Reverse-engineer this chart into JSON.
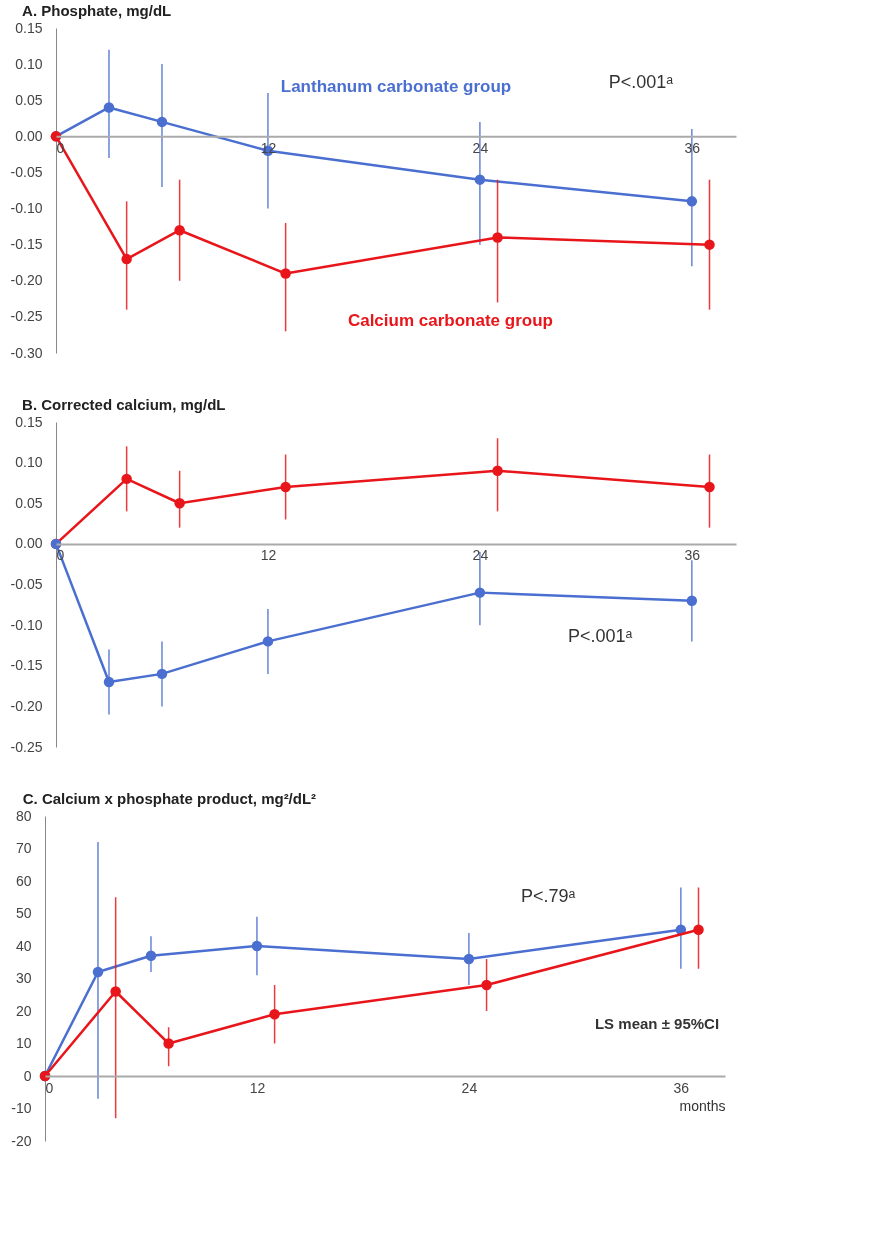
{
  "chart_data": [
    {
      "type": "line",
      "title": "A. Phosphate, mg/dL",
      "xlim": [
        0,
        38.5
      ],
      "xticks": [
        0,
        12,
        24,
        36
      ],
      "ylim": [
        -0.3,
        0.15
      ],
      "yticks": [
        {
          "value": -0.3,
          "label": "-0.30"
        },
        {
          "value": -0.25,
          "label": "-0.25"
        },
        {
          "value": -0.2,
          "label": "-0.20"
        },
        {
          "value": -0.15,
          "label": "-0.15"
        },
        {
          "value": -0.1,
          "label": "-0.10"
        },
        {
          "value": -0.05,
          "label": "-0.05"
        },
        {
          "value": 0,
          "label": "0.00"
        },
        {
          "value": 0.05,
          "label": "0.05"
        },
        {
          "value": 0.1,
          "label": "0.10"
        },
        {
          "value": 0.15,
          "label": "0.15"
        }
      ],
      "marker": "circle",
      "line_style": "solid",
      "grid": false,
      "series": [
        {
          "name": "Lanthanum carbonate group",
          "color": "#4a6fd0",
          "x": [
            0,
            3,
            6,
            12,
            24,
            36
          ],
          "values": [
            0,
            0.04,
            0.02,
            -0.02,
            -0.06,
            -0.09
          ],
          "errors": [
            null,
            [
              -0.03,
              0.12
            ],
            [
              -0.07,
              0.1
            ],
            [
              -0.1,
              0.06
            ],
            [
              -0.15,
              0.02
            ],
            [
              -0.18,
              0.01
            ]
          ]
        },
        {
          "name": "Calcium carbonate group",
          "color": "#e8161b",
          "x": [
            0,
            4,
            7,
            13,
            25,
            37
          ],
          "values": [
            0,
            -0.17,
            -0.13,
            -0.19,
            -0.14,
            -0.15
          ],
          "errors": [
            null,
            [
              -0.24,
              -0.09
            ],
            [
              -0.2,
              -0.06
            ],
            [
              -0.27,
              -0.12
            ],
            [
              -0.23,
              -0.06
            ],
            [
              -0.24,
              -0.06
            ]
          ]
        }
      ],
      "annotations": [
        "P<.001ᵃ"
      ]
    },
    {
      "type": "line",
      "title": "B. Corrected calcium, mg/dL",
      "xlim": [
        0,
        38.5
      ],
      "xticks": [
        0,
        12,
        24,
        36
      ],
      "ylim": [
        -0.25,
        0.15
      ],
      "yticks": [
        {
          "value": -0.25,
          "label": "-0.25"
        },
        {
          "value": -0.2,
          "label": "-0.20"
        },
        {
          "value": -0.15,
          "label": "-0.15"
        },
        {
          "value": -0.1,
          "label": "-0.10"
        },
        {
          "value": -0.05,
          "label": "-0.05"
        },
        {
          "value": 0,
          "label": "0.00"
        },
        {
          "value": 0.05,
          "label": "0.05"
        },
        {
          "value": 0.1,
          "label": "0.10"
        },
        {
          "value": 0.15,
          "label": "0.15"
        }
      ],
      "marker": "circle",
      "line_style": "solid",
      "grid": false,
      "series": [
        {
          "color": "#e8161b",
          "x": [
            0,
            4,
            7,
            13,
            25,
            37
          ],
          "values": [
            0,
            0.08,
            0.05,
            0.07,
            0.09,
            0.07
          ],
          "errors": [
            null,
            [
              0.04,
              0.12
            ],
            [
              0.02,
              0.09
            ],
            [
              0.03,
              0.11
            ],
            [
              0.04,
              0.13
            ],
            [
              0.02,
              0.11
            ]
          ]
        },
        {
          "color": "#4a6fd0",
          "x": [
            0,
            3,
            6,
            12,
            24,
            36
          ],
          "values": [
            0,
            -0.17,
            -0.16,
            -0.12,
            -0.06,
            -0.07
          ],
          "errors": [
            null,
            [
              -0.21,
              -0.13
            ],
            [
              -0.2,
              -0.12
            ],
            [
              -0.16,
              -0.08
            ],
            [
              -0.1,
              -0.01
            ],
            [
              -0.12,
              -0.02
            ]
          ]
        }
      ],
      "annotations": [
        "P<.001ᵃ"
      ]
    },
    {
      "type": "line",
      "title": "C. Calcium x phosphate product, mg²/dL²",
      "xlabel": "months",
      "xlim": [
        0,
        38.5
      ],
      "xticks": [
        0,
        12,
        24,
        36
      ],
      "ylim": [
        -20,
        80
      ],
      "yticks": [
        -20,
        -10,
        0,
        10,
        20,
        30,
        40,
        50,
        60,
        70,
        80
      ],
      "marker": "circle",
      "line_style": "solid",
      "grid": false,
      "series": [
        {
          "color": "#4a6fd0",
          "x": [
            0,
            3,
            6,
            12,
            24,
            36
          ],
          "values": [
            0,
            32,
            37,
            40,
            36,
            45
          ],
          "errors": [
            null,
            [
              -7,
              72
            ],
            [
              32,
              43
            ],
            [
              31,
              49
            ],
            [
              28,
              44
            ],
            [
              33,
              58
            ]
          ]
        },
        {
          "color": "#e8161b",
          "x": [
            0,
            4,
            7,
            13,
            25,
            37
          ],
          "values": [
            0,
            26,
            10,
            19,
            28,
            45
          ],
          "errors": [
            null,
            [
              -13,
              55
            ],
            [
              3,
              15
            ],
            [
              10,
              28
            ],
            [
              20,
              36
            ],
            [
              33,
              58
            ]
          ]
        }
      ],
      "annotations": [
        "P<.79ᵃ",
        "LS mean ± 95%CI"
      ]
    }
  ]
}
